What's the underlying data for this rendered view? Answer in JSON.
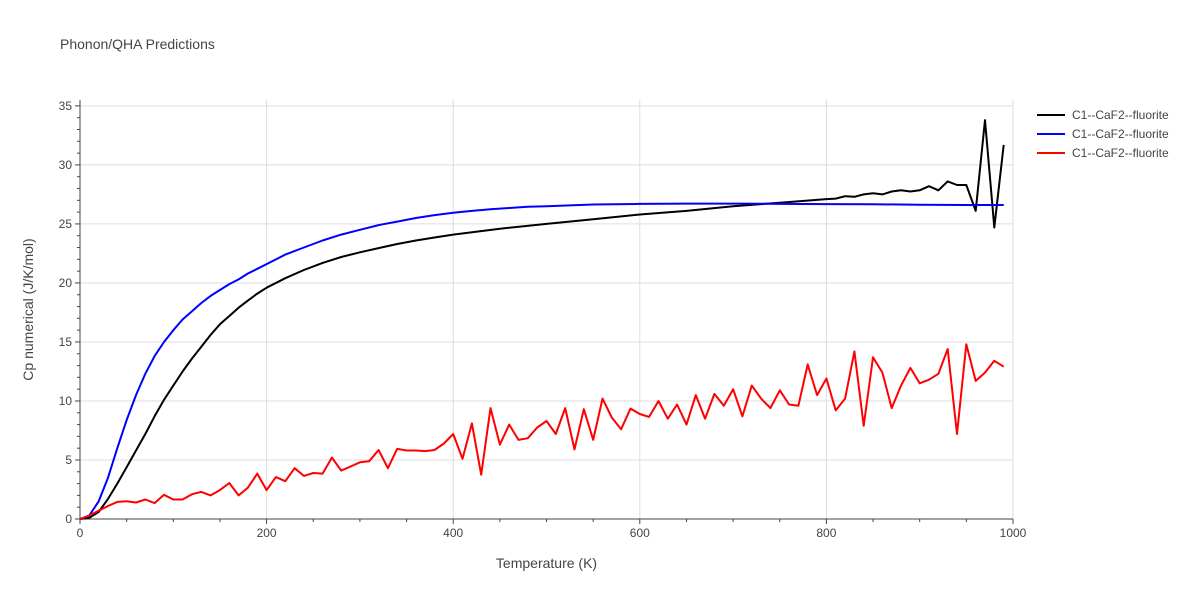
{
  "chart_data": {
    "type": "line",
    "title": "Phonon/QHA Predictions",
    "xlabel": "Temperature (K)",
    "ylabel": "Cp numerical (J/K/mol)",
    "xlim": [
      0,
      1000
    ],
    "ylim": [
      0,
      35.5
    ],
    "xticks": [
      0,
      200,
      400,
      600,
      800,
      1000
    ],
    "yticks": [
      0,
      5,
      10,
      15,
      20,
      25,
      30,
      35
    ],
    "grid": true,
    "legend_position": "top-right",
    "series": [
      {
        "name": "C1--CaF2--fluorite",
        "color": "#000000",
        "x": [
          0,
          10,
          20,
          30,
          40,
          50,
          60,
          70,
          80,
          90,
          100,
          110,
          120,
          130,
          140,
          150,
          160,
          170,
          180,
          190,
          200,
          220,
          240,
          260,
          280,
          300,
          320,
          340,
          360,
          380,
          400,
          450,
          500,
          550,
          600,
          650,
          700,
          750,
          800,
          810,
          820,
          830,
          840,
          850,
          860,
          870,
          880,
          890,
          900,
          910,
          920,
          930,
          940,
          950,
          960,
          970,
          980,
          990
        ],
        "y": [
          0,
          0.1,
          0.6,
          1.7,
          3.0,
          4.4,
          5.8,
          7.2,
          8.7,
          10.1,
          11.3,
          12.5,
          13.6,
          14.6,
          15.6,
          16.5,
          17.2,
          17.9,
          18.5,
          19.1,
          19.6,
          20.4,
          21.1,
          21.7,
          22.2,
          22.6,
          22.95,
          23.3,
          23.6,
          23.85,
          24.1,
          24.6,
          25.0,
          25.4,
          25.8,
          26.1,
          26.5,
          26.8,
          27.1,
          27.15,
          27.35,
          27.3,
          27.5,
          27.6,
          27.5,
          27.75,
          27.85,
          27.75,
          27.85,
          28.2,
          27.85,
          28.6,
          28.3,
          28.3,
          26.1,
          33.8,
          24.7,
          31.7
        ]
      },
      {
        "name": "C1--CaF2--fluorite",
        "color": "#0000ff",
        "x": [
          0,
          10,
          20,
          30,
          40,
          50,
          60,
          70,
          80,
          90,
          100,
          110,
          120,
          130,
          140,
          150,
          160,
          170,
          180,
          190,
          200,
          220,
          240,
          260,
          280,
          300,
          320,
          340,
          360,
          380,
          400,
          420,
          440,
          460,
          480,
          500,
          550,
          600,
          650,
          700,
          750,
          800,
          850,
          900,
          950,
          990
        ],
        "y": [
          0,
          0.3,
          1.5,
          3.5,
          6.0,
          8.4,
          10.5,
          12.3,
          13.8,
          15.0,
          16.0,
          16.9,
          17.6,
          18.3,
          18.9,
          19.4,
          19.9,
          20.3,
          20.8,
          21.2,
          21.6,
          22.4,
          23.0,
          23.6,
          24.1,
          24.5,
          24.9,
          25.2,
          25.5,
          25.75,
          25.95,
          26.1,
          26.25,
          26.35,
          26.45,
          26.5,
          26.65,
          26.7,
          26.72,
          26.72,
          26.7,
          26.68,
          26.66,
          26.63,
          26.6,
          26.6
        ]
      },
      {
        "name": "C1--CaF2--fluorite",
        "color": "#ff0000",
        "x": [
          0,
          10,
          20,
          30,
          40,
          50,
          60,
          70,
          80,
          90,
          100,
          110,
          120,
          130,
          140,
          150,
          160,
          170,
          180,
          190,
          200,
          210,
          220,
          230,
          240,
          250,
          260,
          270,
          280,
          290,
          300,
          310,
          320,
          330,
          340,
          350,
          360,
          370,
          380,
          390,
          400,
          410,
          420,
          430,
          440,
          450,
          460,
          470,
          480,
          490,
          500,
          510,
          520,
          530,
          540,
          550,
          560,
          570,
          580,
          590,
          600,
          610,
          620,
          630,
          640,
          650,
          660,
          670,
          680,
          690,
          700,
          710,
          720,
          730,
          740,
          750,
          760,
          770,
          780,
          790,
          800,
          810,
          820,
          830,
          840,
          850,
          860,
          870,
          880,
          890,
          900,
          910,
          920,
          930,
          940,
          950,
          960,
          970,
          980,
          990
        ],
        "y": [
          0,
          0.3,
          0.7,
          1.1,
          1.45,
          1.5,
          1.4,
          1.65,
          1.35,
          2.05,
          1.65,
          1.65,
          2.1,
          2.3,
          2.0,
          2.45,
          3.05,
          2.0,
          2.65,
          3.85,
          2.45,
          3.55,
          3.2,
          4.3,
          3.65,
          3.9,
          3.85,
          5.2,
          4.1,
          4.45,
          4.8,
          4.9,
          5.85,
          4.3,
          5.95,
          5.8,
          5.8,
          5.75,
          5.85,
          6.4,
          7.2,
          5.1,
          8.1,
          3.75,
          9.4,
          6.3,
          8.0,
          6.7,
          6.85,
          7.75,
          8.3,
          7.2,
          9.4,
          5.9,
          9.3,
          6.7,
          10.2,
          8.6,
          7.6,
          9.35,
          8.9,
          8.65,
          10.0,
          8.5,
          9.7,
          8.0,
          10.5,
          8.5,
          10.6,
          9.6,
          11.0,
          8.7,
          11.3,
          10.2,
          9.4,
          10.9,
          9.7,
          9.6,
          13.1,
          10.5,
          11.9,
          9.2,
          10.2,
          14.2,
          7.9,
          13.7,
          12.4,
          9.4,
          11.3,
          12.8,
          11.5,
          11.8,
          12.3,
          14.4,
          7.2,
          14.8,
          11.7,
          12.4,
          13.4,
          12.9
        ]
      }
    ]
  }
}
